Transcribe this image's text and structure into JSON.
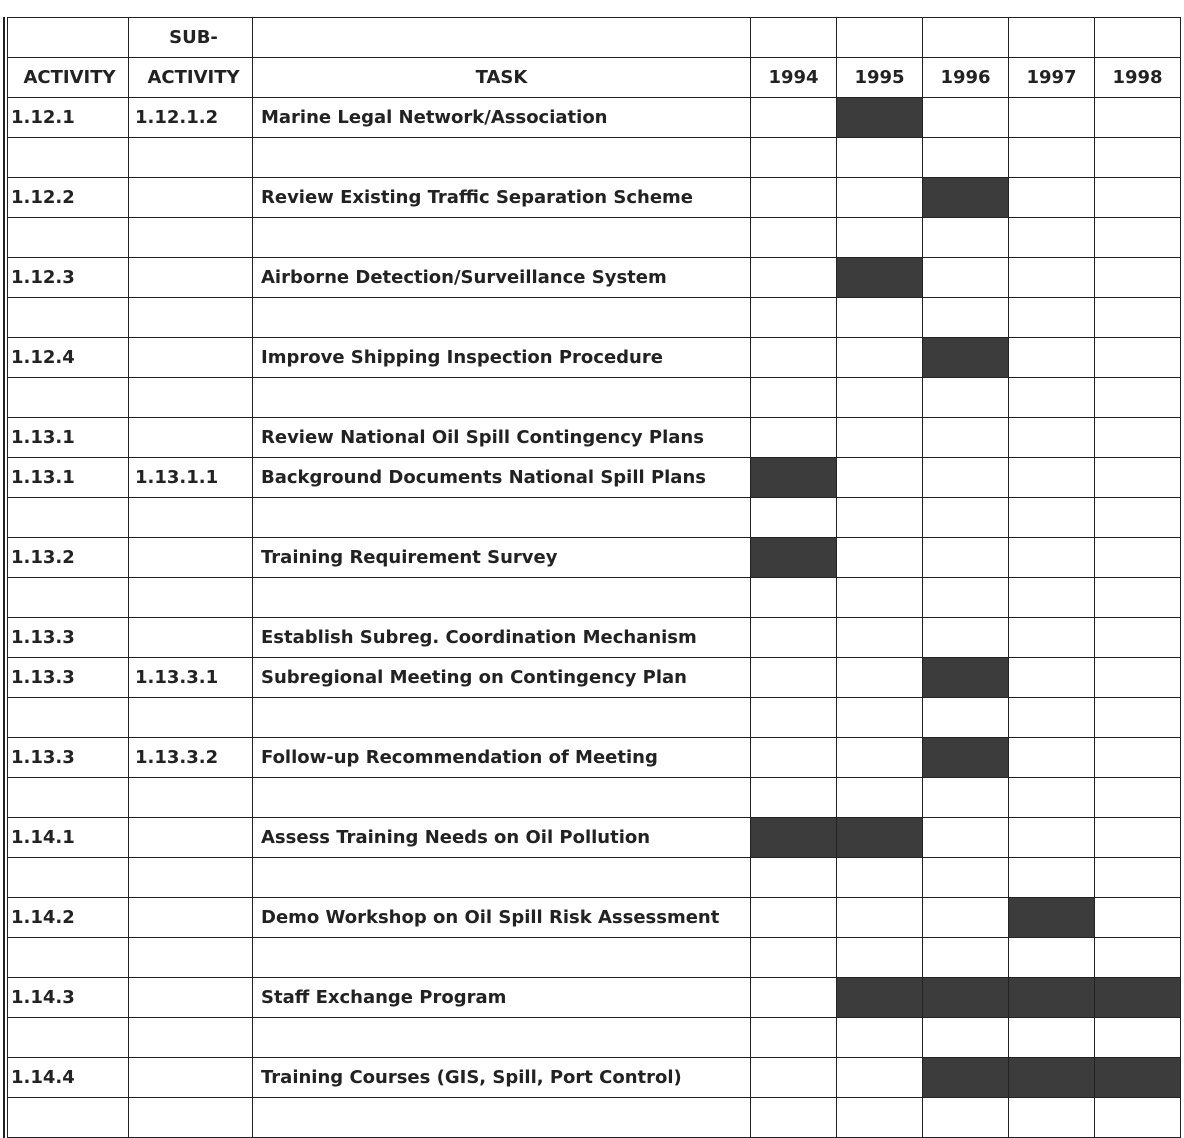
{
  "header": {
    "row1": {
      "sub_activity": "SUB-"
    },
    "row2": {
      "activity": "ACTIVITY",
      "sub_activity": "ACTIVITY",
      "task": "TASK"
    },
    "years": [
      "1994",
      "1995",
      "1996",
      "1997",
      "1998"
    ]
  },
  "bar_color": "#3c3c3c",
  "rows": [
    {
      "activity": "1.12.1",
      "sub": "1.12.1.2",
      "task": "Marine Legal Network/Association",
      "years": [
        "1995"
      ]
    },
    {
      "activity": "",
      "sub": "",
      "task": "",
      "years": []
    },
    {
      "activity": "1.12.2",
      "sub": "",
      "task": "Review Existing Traffic Separation Scheme",
      "years": [
        "1996"
      ]
    },
    {
      "activity": "",
      "sub": "",
      "task": "",
      "years": []
    },
    {
      "activity": "1.12.3",
      "sub": "",
      "task": "Airborne Detection/Surveillance System",
      "years": [
        "1995"
      ]
    },
    {
      "activity": "",
      "sub": "",
      "task": "",
      "years": []
    },
    {
      "activity": "1.12.4",
      "sub": "",
      "task": "Improve Shipping Inspection Procedure",
      "years": [
        "1996"
      ]
    },
    {
      "activity": "",
      "sub": "",
      "task": "",
      "years": []
    },
    {
      "activity": "1.13.1",
      "sub": "",
      "task": "Review National Oil Spill Contingency Plans",
      "years": []
    },
    {
      "activity": "1.13.1",
      "sub": "1.13.1.1",
      "task": "Background Documents National Spill Plans",
      "years": [
        "1994"
      ]
    },
    {
      "activity": "",
      "sub": "",
      "task": "",
      "years": []
    },
    {
      "activity": "1.13.2",
      "sub": "",
      "task": "Training Requirement Survey",
      "years": [
        "1994"
      ]
    },
    {
      "activity": "",
      "sub": "",
      "task": "",
      "years": []
    },
    {
      "activity": "1.13.3",
      "sub": "",
      "task": "Establish Subreg. Coordination Mechanism",
      "years": []
    },
    {
      "activity": "1.13.3",
      "sub": "1.13.3.1",
      "task": "Subregional Meeting on Contingency Plan",
      "years": [
        "1996"
      ]
    },
    {
      "activity": "",
      "sub": "",
      "task": "",
      "years": []
    },
    {
      "activity": "1.13.3",
      "sub": "1.13.3.2",
      "task": "Follow-up Recommendation of Meeting",
      "years": [
        "1996"
      ]
    },
    {
      "activity": "",
      "sub": "",
      "task": "",
      "years": []
    },
    {
      "activity": "1.14.1",
      "sub": "",
      "task": "Assess Training Needs on Oil Pollution",
      "years": [
        "1994",
        "1995"
      ]
    },
    {
      "activity": "",
      "sub": "",
      "task": "",
      "years": []
    },
    {
      "activity": "1.14.2",
      "sub": "",
      "task": "Demo Workshop on Oil Spill Risk Assessment",
      "years": [
        "1997"
      ]
    },
    {
      "activity": "",
      "sub": "",
      "task": "",
      "years": []
    },
    {
      "activity": "1.14.3",
      "sub": "",
      "task": "Staff Exchange Program",
      "years": [
        "1995",
        "1996",
        "1997",
        "1998"
      ]
    },
    {
      "activity": "",
      "sub": "",
      "task": "",
      "years": []
    },
    {
      "activity": "1.14.4",
      "sub": "",
      "task": "Training Courses (GIS, Spill, Port Control)",
      "years": [
        "1996",
        "1997",
        "1998"
      ]
    },
    {
      "activity": "",
      "sub": "",
      "task": "",
      "years": []
    }
  ]
}
